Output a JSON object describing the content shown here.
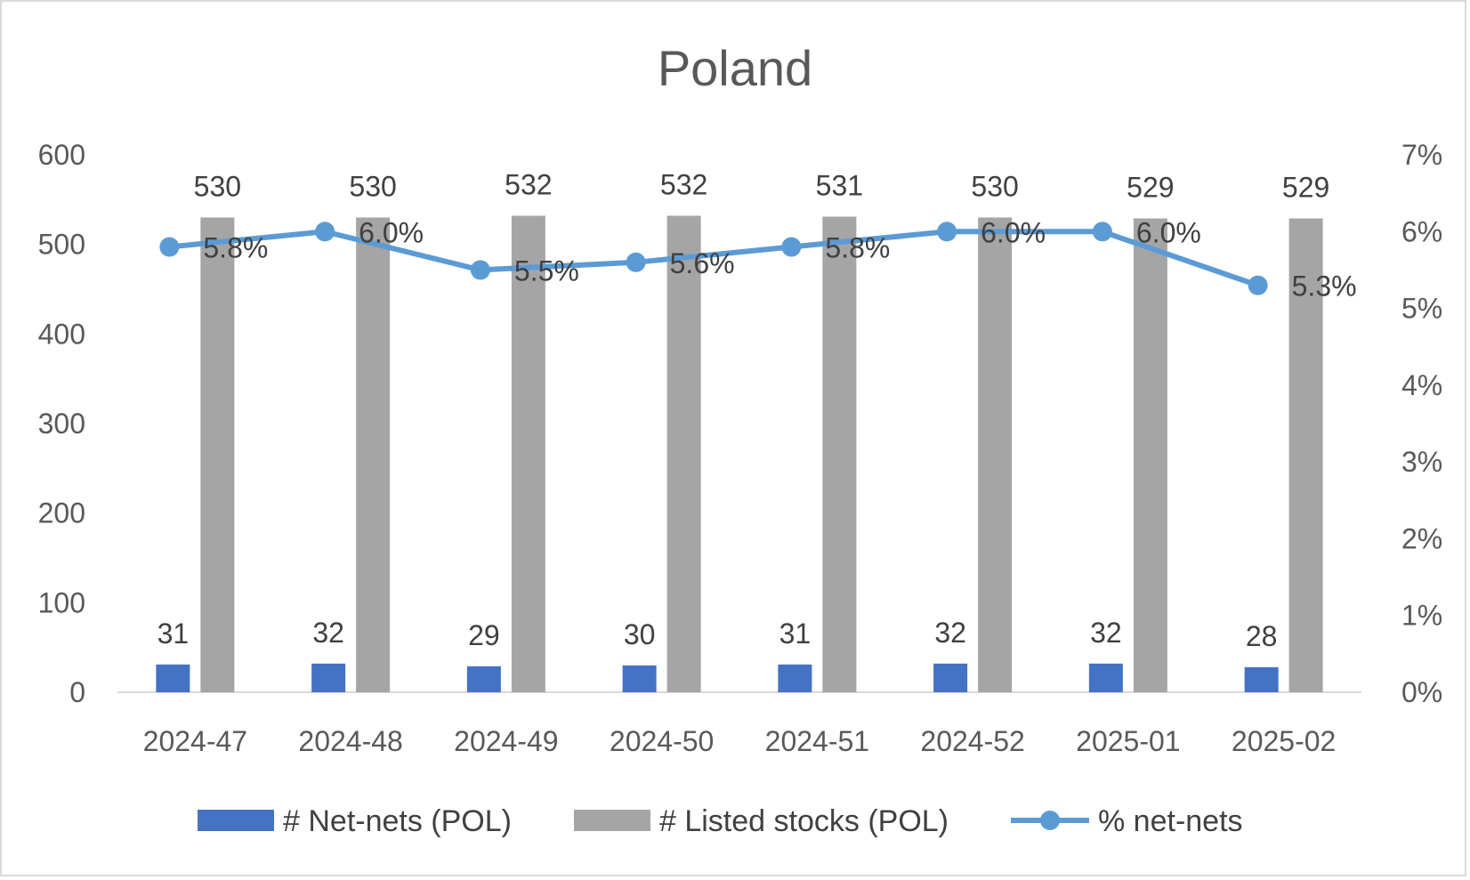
{
  "chart_data": {
    "type": "bar",
    "title": "Poland",
    "categories": [
      "2024-47",
      "2024-48",
      "2024-49",
      "2024-50",
      "2024-51",
      "2024-52",
      "2025-01",
      "2025-02"
    ],
    "series": [
      {
        "name": "# Net-nets (POL)",
        "type": "bar",
        "axis": "left",
        "color": "#4472c4",
        "values": [
          31,
          32,
          29,
          30,
          31,
          32,
          32,
          28
        ]
      },
      {
        "name": "# Listed stocks (POL)",
        "type": "bar",
        "axis": "left",
        "color": "#a5a5a5",
        "values": [
          530,
          530,
          532,
          532,
          531,
          530,
          529,
          529
        ]
      },
      {
        "name": "% net-nets",
        "type": "line",
        "axis": "right",
        "color": "#5b9bd5",
        "values": [
          5.8,
          6.0,
          5.5,
          5.6,
          5.8,
          6.0,
          6.0,
          5.3
        ],
        "labels": [
          "5.8%",
          "6.0%",
          "5.5%",
          "5.6%",
          "5.8%",
          "6.0%",
          "6.0%",
          "5.3%"
        ]
      }
    ],
    "y_left": {
      "ylim": [
        0,
        600
      ],
      "ticks": [
        "0",
        "100",
        "200",
        "300",
        "400",
        "500",
        "600"
      ]
    },
    "y_right": {
      "ylim": [
        0,
        7
      ],
      "ticks": [
        "0%",
        "1%",
        "2%",
        "3%",
        "4%",
        "5%",
        "6%",
        "7%"
      ]
    },
    "xlabel": "",
    "ylabel": "",
    "grid": false,
    "legend": "bottom"
  }
}
